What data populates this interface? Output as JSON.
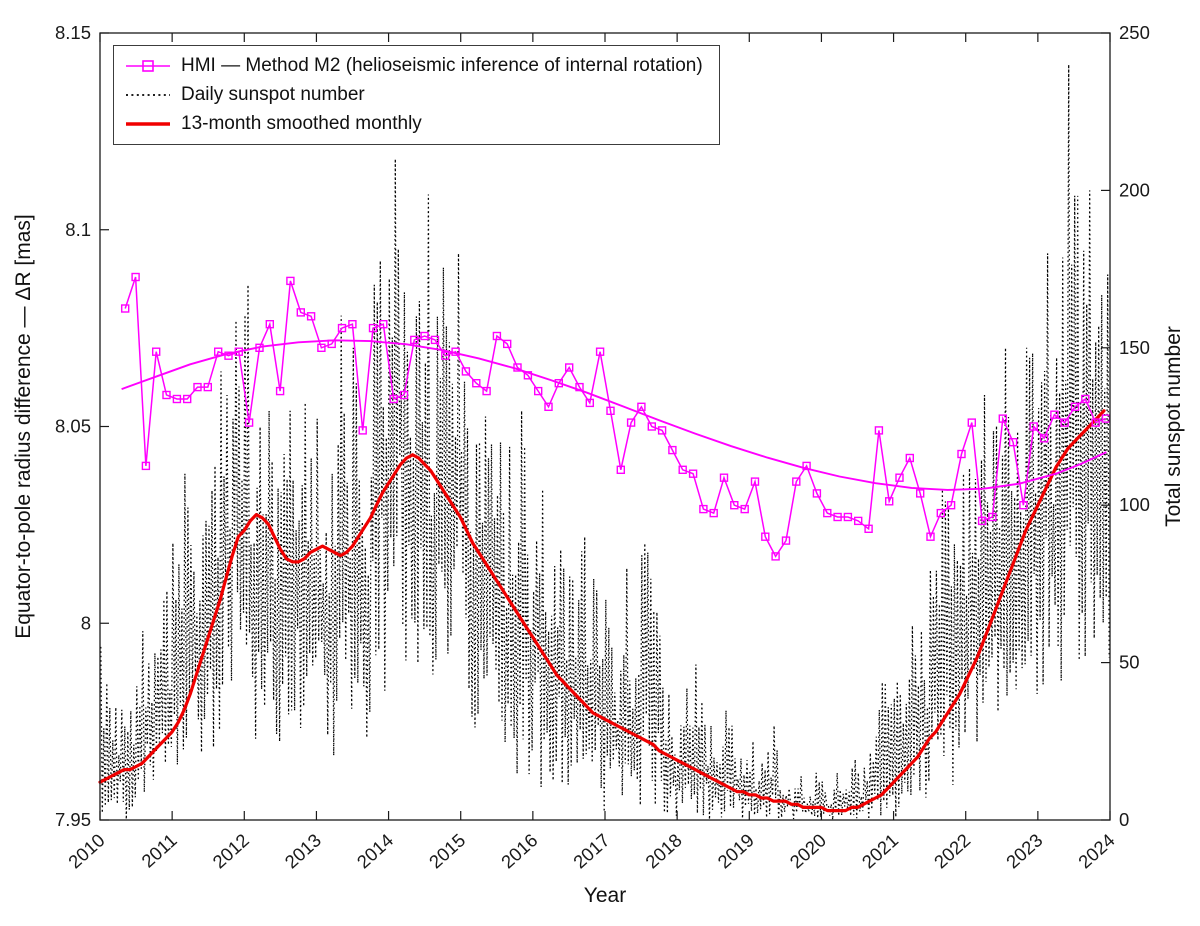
{
  "figure": {
    "background": "#ffffff",
    "axis_color": "#1a1a1a"
  },
  "chart_data": {
    "type": "line",
    "title": "",
    "xlabel": "Year",
    "grid": false,
    "x_axis": {
      "range": [
        2010,
        2024
      ],
      "ticks": [
        2010,
        2011,
        2012,
        2013,
        2014,
        2015,
        2016,
        2017,
        2018,
        2019,
        2020,
        2021,
        2022,
        2023,
        2024
      ],
      "tick_labels": [
        "2010",
        "2011",
        "2012",
        "2013",
        "2014",
        "2015",
        "2016",
        "2017",
        "2018",
        "2019",
        "2020",
        "2021",
        "2022",
        "2023",
        "2024"
      ]
    },
    "left_axis": {
      "label": "Equator-to-pole radius difference —  ΔR [mas]",
      "range": [
        7.95,
        8.15
      ],
      "ticks": [
        7.95,
        8,
        8.05,
        8.1,
        8.15
      ],
      "tick_labels": [
        "7.95",
        "8",
        "8.05",
        "8.1",
        "8.15"
      ]
    },
    "right_axis": {
      "label": "Total sunspot number",
      "range": [
        0,
        250
      ],
      "ticks": [
        0,
        50,
        100,
        150,
        200,
        250
      ],
      "tick_labels": [
        "0",
        "50",
        "100",
        "150",
        "200",
        "250"
      ]
    },
    "legend": {
      "position": "top-left",
      "entries": [
        {
          "label": "HMI — Method M2 (helioseismic inference of internal rotation)",
          "color": "#ff00ff",
          "style": "line-with-square-marker"
        },
        {
          "label": "Daily sunspot number",
          "color": "#000000",
          "style": "dotted"
        },
        {
          "label": "13-month smoothed monthly",
          "color": "#f00000",
          "style": "thick-line"
        }
      ]
    },
    "series": [
      {
        "name": "hmi-m2",
        "axis": "left",
        "color": "#ff00ff",
        "marker": "open-square",
        "x_start": 2010.35,
        "x_step": 0.1431,
        "values": [
          8.08,
          8.088,
          8.04,
          8.069,
          8.058,
          8.057,
          8.057,
          8.06,
          8.06,
          8.069,
          8.068,
          8.069,
          8.051,
          8.07,
          8.076,
          8.059,
          8.087,
          8.079,
          8.078,
          8.07,
          8.071,
          8.075,
          8.076,
          8.049,
          8.075,
          8.076,
          8.057,
          8.058,
          8.072,
          8.073,
          8.072,
          8.068,
          8.069,
          8.064,
          8.061,
          8.059,
          8.073,
          8.071,
          8.065,
          8.063,
          8.059,
          8.055,
          8.061,
          8.065,
          8.06,
          8.056,
          8.069,
          8.054,
          8.039,
          8.051,
          8.055,
          8.05,
          8.049,
          8.044,
          8.039,
          8.038,
          8.029,
          8.028,
          8.037,
          8.03,
          8.029,
          8.036,
          8.022,
          8.017,
          8.021,
          8.036,
          8.04,
          8.033,
          8.028,
          8.027,
          8.027,
          8.026,
          8.024,
          8.049,
          8.031,
          8.037,
          8.042,
          8.033,
          8.022,
          8.028,
          8.03,
          8.043,
          8.051,
          8.026,
          8.027,
          8.052,
          8.046,
          8.03,
          8.05,
          8.047,
          8.053,
          8.051,
          8.055,
          8.057,
          8.051,
          8.052
        ]
      },
      {
        "name": "hmi-m2-smooth-fit",
        "axis": "left",
        "color": "#ff00ff",
        "style": "smooth",
        "x": [
          2010.3,
          2010.75,
          2011.25,
          2011.75,
          2012.25,
          2012.75,
          2013.25,
          2013.75,
          2014.25,
          2014.75,
          2015.25,
          2015.75,
          2016.25,
          2016.75,
          2017.25,
          2017.75,
          2018.25,
          2018.75,
          2019.25,
          2019.75,
          2020.25,
          2020.75,
          2021.25,
          2021.75,
          2022.25,
          2022.75,
          2023.25,
          2023.6,
          2023.95
        ],
        "y": [
          8.0595,
          8.0625,
          8.0658,
          8.0684,
          8.0703,
          8.0714,
          8.0719,
          8.0717,
          8.0709,
          8.0694,
          8.0673,
          8.0648,
          8.0618,
          8.0586,
          8.0551,
          8.0516,
          8.0482,
          8.045,
          8.0421,
          8.0395,
          8.0373,
          8.0356,
          8.0344,
          8.0339,
          8.0342,
          8.0355,
          8.038,
          8.0405,
          8.0435
        ]
      },
      {
        "name": "daily-sunspot",
        "axis": "right",
        "color": "#000000",
        "style": "dotted",
        "x_start": 2010.0,
        "x_step": 0.0833333,
        "env_min": [
          2,
          5,
          2,
          3,
          0,
          0,
          5,
          8,
          10,
          8,
          10,
          5,
          10,
          15,
          20,
          25,
          20,
          15,
          20,
          25,
          40,
          40,
          45,
          40,
          30,
          20,
          30,
          25,
          30,
          20,
          40,
          30,
          30,
          20,
          30,
          20,
          30,
          20,
          20,
          30,
          40,
          30,
          40,
          30,
          20,
          40,
          50,
          40,
          60,
          70,
          50,
          60,
          40,
          50,
          40,
          30,
          40,
          50,
          40,
          50,
          40,
          30,
          20,
          30,
          30,
          30,
          20,
          20,
          20,
          10,
          20,
          10,
          15,
          10,
          5,
          10,
          10,
          5,
          10,
          5,
          5,
          5,
          5,
          0,
          5,
          5,
          0,
          5,
          0,
          0,
          5,
          5,
          0,
          0,
          0,
          0,
          0,
          0,
          0,
          0,
          0,
          0,
          0,
          0,
          0,
          0,
          0,
          0,
          0,
          0,
          0,
          0,
          0,
          0,
          0,
          0,
          0,
          0,
          0,
          0,
          0,
          0,
          0,
          0,
          0,
          0,
          0,
          0,
          0,
          0,
          0,
          0,
          0,
          0,
          0,
          5,
          5,
          5,
          10,
          10,
          15,
          10,
          10,
          15,
          20,
          20,
          25,
          30,
          30,
          30,
          30,
          30,
          30,
          30,
          30,
          40,
          40,
          50,
          40,
          40,
          50,
          60,
          50,
          50,
          60,
          50,
          40,
          50
        ],
        "env_max": [
          55,
          50,
          40,
          35,
          30,
          35,
          45,
          60,
          55,
          60,
          70,
          75,
          95,
          85,
          110,
          100,
          90,
          95,
          110,
          115,
          160,
          135,
          190,
          155,
          170,
          120,
          135,
          120,
          130,
          120,
          160,
          130,
          120,
          110,
          140,
          115,
          130,
          115,
          110,
          135,
          165,
          135,
          150,
          130,
          100,
          170,
          200,
          170,
          220,
          210,
          170,
          175,
          160,
          170,
          200,
          140,
          160,
          190,
          170,
          180,
          150,
          140,
          130,
          120,
          140,
          160,
          120,
          110,
          135,
          100,
          130,
          110,
          110,
          105,
          90,
          110,
          95,
          80,
          85,
          75,
          90,
          70,
          80,
          60,
          70,
          65,
          60,
          80,
          55,
          50,
          90,
          85,
          120,
          60,
          40,
          35,
          35,
          45,
          30,
          55,
          40,
          30,
          25,
          30,
          35,
          30,
          25,
          20,
          25,
          20,
          20,
          25,
          30,
          10,
          15,
          10,
          15,
          10,
          10,
          15,
          15,
          10,
          15,
          15,
          10,
          20,
          15,
          20,
          25,
          35,
          60,
          50,
          45,
          40,
          45,
          70,
          60,
          55,
          90,
          80,
          105,
          100,
          90,
          110,
          120,
          110,
          140,
          135,
          130,
          140,
          150,
          135,
          150,
          140,
          150,
          160,
          165,
          180,
          160,
          150,
          185,
          240,
          200,
          185,
          200,
          180,
          170,
          190
        ]
      },
      {
        "name": "smoothed-monthly",
        "axis": "right",
        "color": "#f00000",
        "style": "thick-line",
        "x_start": 2010.0,
        "x_step": 0.0833333,
        "values": [
          12,
          13,
          14,
          15,
          16,
          16,
          17,
          18,
          20,
          22,
          24,
          26,
          28,
          31,
          35,
          40,
          46,
          52,
          58,
          64,
          70,
          77,
          84,
          90,
          92,
          95,
          97,
          96,
          94,
          90,
          86,
          83,
          82,
          82,
          83,
          85,
          86,
          87,
          86,
          85,
          84,
          85,
          87,
          90,
          93,
          96,
          100,
          104,
          107,
          110,
          113,
          115,
          116,
          115,
          113,
          111,
          108,
          105,
          102,
          99,
          96,
          92,
          88,
          85,
          82,
          79,
          76,
          73,
          70,
          67,
          64,
          61,
          58,
          55,
          52,
          49,
          46,
          44,
          42,
          40,
          38,
          36,
          34,
          33,
          32,
          31,
          30,
          29,
          28,
          27,
          26,
          25,
          24,
          22,
          21,
          20,
          19,
          18,
          17,
          16,
          15,
          14,
          13,
          12,
          11,
          10,
          9,
          9,
          8,
          8,
          7,
          7,
          6,
          6,
          6,
          5,
          5,
          4,
          4,
          4,
          4,
          3,
          3,
          3,
          3,
          4,
          4,
          5,
          6,
          7,
          8,
          10,
          12,
          14,
          16,
          18,
          20,
          23,
          26,
          28,
          31,
          34,
          37,
          40,
          44,
          48,
          52,
          57,
          62,
          67,
          72,
          77,
          82,
          87,
          92,
          96,
          100,
          104,
          108,
          112,
          115,
          118,
          120,
          122,
          124,
          126,
          128,
          130
        ]
      }
    ]
  }
}
